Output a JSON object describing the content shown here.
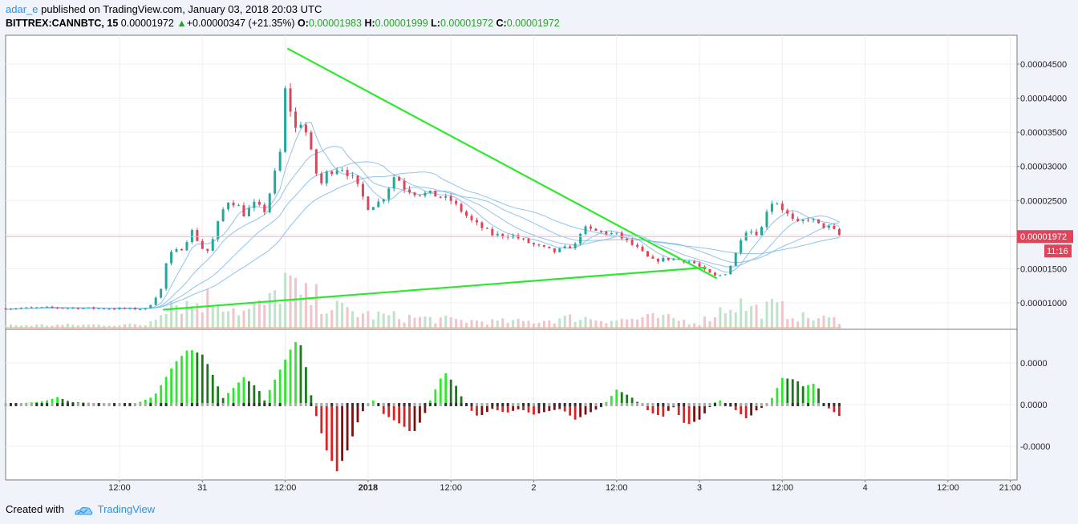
{
  "header": {
    "author": "adar_e",
    "published_text": "published on TradingView.com, January 03, 2018 20:03 UTC"
  },
  "ticker": {
    "symbol": "BITTREX:CANNBTC, 15",
    "price": "0.00001972",
    "arrow": "▲",
    "change": "+0.00000347 (+21.35%)",
    "open_label": "O:",
    "open": "0.00001983",
    "high_label": "H:",
    "high": "0.00001999",
    "low_label": "L:",
    "low": "0.00001972",
    "close_label": "C:",
    "close": "0.00001972"
  },
  "footer": {
    "created_with": "Created with",
    "brand": "TradingView"
  },
  "colors": {
    "up": "#26a69a",
    "down": "#e0445a",
    "trendline": "#2ee82e",
    "ma": "#7cb8e8",
    "hist_up": "#2ee82e",
    "hist_down": "#e02020",
    "price_label": "#e0445a",
    "background": "#f0f3fa",
    "panel": "#ffffff"
  },
  "chart_data": [
    {
      "type": "candlestick",
      "title": "",
      "ylim": [
        6.5e-06,
        4.9e-06
      ],
      "y_ticks": [
        "0.00004500",
        "0.00004000",
        "0.00003500",
        "0.00003000",
        "0.00002500",
        "0.00002000",
        "0.00001500",
        "0.00001000"
      ],
      "y_tick_values": [
        4.5e-05,
        4e-05,
        3.5e-05,
        3e-05,
        2.5e-05,
        2e-05,
        1.5e-05,
        1e-05
      ],
      "x_ticks": [
        "12:00",
        "31",
        "12:00",
        "2018",
        "12:00",
        "2",
        "12:00",
        "3",
        "12:00",
        "4",
        "12:00",
        "21:00"
      ],
      "x_tick_hours": [
        12,
        24,
        36,
        48,
        60,
        72,
        84,
        96,
        108,
        120,
        132,
        141
      ],
      "x_range_hours": [
        -4.5,
        142
      ],
      "last_price": "0.00001972",
      "last_price_value": 1.972e-05,
      "countdown": "11:16",
      "price_path": [
        [
          -4.5,
          9.2e-06
        ],
        [
          2,
          9.3e-06
        ],
        [
          8,
          9.2e-06
        ],
        [
          16,
          9.1e-06
        ],
        [
          18,
          1.2e-05
        ],
        [
          19,
          1.7e-05
        ],
        [
          21,
          1.8e-05
        ],
        [
          22.5,
          2.05e-05
        ],
        [
          24,
          1.8e-05
        ],
        [
          25,
          1.75e-05
        ],
        [
          26,
          2.1e-05
        ],
        [
          27.5,
          2.5e-05
        ],
        [
          29,
          2.45e-05
        ],
        [
          30,
          2.3e-05
        ],
        [
          31.5,
          2.45e-05
        ],
        [
          33,
          2.35e-05
        ],
        [
          34,
          2.7e-05
        ],
        [
          35.5,
          3.3e-05
        ],
        [
          36.3,
          4.6e-05
        ],
        [
          37,
          3.4e-05
        ],
        [
          38,
          3.7e-05
        ],
        [
          39,
          3.5e-05
        ],
        [
          40,
          3.1e-05
        ],
        [
          41,
          2.7e-05
        ],
        [
          42,
          2.9e-05
        ],
        [
          44,
          3e-05
        ],
        [
          46,
          2.8e-05
        ],
        [
          48,
          2.4e-05
        ],
        [
          50,
          2.5e-05
        ],
        [
          52,
          2.9e-05
        ],
        [
          53,
          2.7e-05
        ],
        [
          55,
          2.6e-05
        ],
        [
          57,
          2.6e-05
        ],
        [
          60,
          2.5e-05
        ],
        [
          63,
          2.2e-05
        ],
        [
          66,
          2e-05
        ],
        [
          69,
          1.98e-05
        ],
        [
          72,
          1.85e-05
        ],
        [
          75,
          1.75e-05
        ],
        [
          78,
          1.85e-05
        ],
        [
          79,
          2.1e-05
        ],
        [
          81,
          2.05e-05
        ],
        [
          84,
          2e-05
        ],
        [
          87,
          1.8e-05
        ],
        [
          89,
          1.62e-05
        ],
        [
          92,
          1.65e-05
        ],
        [
          95,
          1.6e-05
        ],
        [
          97,
          1.45e-05
        ],
        [
          98.5,
          1.38e-05
        ],
        [
          100,
          1.45e-05
        ],
        [
          101,
          1.65e-05
        ],
        [
          102,
          1.95e-05
        ],
        [
          103,
          2.1e-05
        ],
        [
          104,
          2e-05
        ],
        [
          105,
          2.1e-05
        ],
        [
          106,
          2.45e-05
        ],
        [
          107,
          2.5e-05
        ],
        [
          108,
          2.38e-05
        ],
        [
          110,
          2.15e-05
        ],
        [
          112,
          2.25e-05
        ],
        [
          113,
          2.15e-05
        ],
        [
          115,
          2.1e-05
        ],
        [
          116.5,
          1.97e-05
        ]
      ],
      "trendlines": [
        {
          "from": [
            36.3,
            4.73e-05
          ],
          "to": [
            98.5,
            1.36e-05
          ]
        },
        {
          "from": [
            18.3,
            9e-06
          ],
          "to": [
            97,
            1.52e-05
          ]
        }
      ],
      "volume_max_note": "volume histogram at bottom of price pane",
      "volume_path": [
        [
          -4.5,
          0.05
        ],
        [
          16,
          0.06
        ],
        [
          19,
          0.55
        ],
        [
          22,
          0.45
        ],
        [
          26,
          0.6
        ],
        [
          30,
          0.3
        ],
        [
          34,
          0.5
        ],
        [
          36,
          0.95
        ],
        [
          38,
          0.6
        ],
        [
          41,
          0.55
        ],
        [
          44,
          0.35
        ],
        [
          48,
          0.25
        ],
        [
          54,
          0.2
        ],
        [
          60,
          0.15
        ],
        [
          66,
          0.12
        ],
        [
          72,
          0.12
        ],
        [
          78,
          0.2
        ],
        [
          84,
          0.15
        ],
        [
          90,
          0.2
        ],
        [
          96,
          0.1
        ],
        [
          101,
          0.5
        ],
        [
          104,
          0.35
        ],
        [
          107,
          0.4
        ],
        [
          111,
          0.2
        ],
        [
          116.5,
          0.15
        ]
      ]
    },
    {
      "type": "histogram",
      "title": "",
      "ylim": [
        -1,
        1
      ],
      "y_ticks": [
        "0.0000",
        "0.0000",
        "-0.0000"
      ],
      "y_tick_values": [
        0.5,
        0,
        -0.5
      ],
      "osc_path": [
        [
          -4.5,
          0
        ],
        [
          1,
          0.04
        ],
        [
          3,
          0.09
        ],
        [
          5,
          0.03
        ],
        [
          14,
          0
        ],
        [
          17,
          0.1
        ],
        [
          20,
          0.5
        ],
        [
          22,
          0.67
        ],
        [
          24,
          0.6
        ],
        [
          25,
          0.45
        ],
        [
          27,
          0.08
        ],
        [
          28.5,
          0.2
        ],
        [
          30,
          0.33
        ],
        [
          32,
          0.2
        ],
        [
          33,
          0.05
        ],
        [
          34.5,
          0.3
        ],
        [
          37,
          0.7
        ],
        [
          38,
          0.8
        ],
        [
          39,
          0.45
        ],
        [
          40,
          0.0
        ],
        [
          42,
          -0.55
        ],
        [
          43.5,
          -0.8
        ],
        [
          45,
          -0.55
        ],
        [
          47,
          -0.1
        ],
        [
          49,
          0.07
        ],
        [
          50,
          -0.1
        ],
        [
          53,
          -0.25
        ],
        [
          54.5,
          -0.35
        ],
        [
          56,
          -0.15
        ],
        [
          57,
          0.05
        ],
        [
          59,
          0.4
        ],
        [
          61,
          0.2
        ],
        [
          62,
          0.0
        ],
        [
          64,
          -0.15
        ],
        [
          66,
          -0.05
        ],
        [
          68,
          -0.1
        ],
        [
          70,
          -0.05
        ],
        [
          72,
          -0.12
        ],
        [
          74,
          -0.08
        ],
        [
          76,
          -0.05
        ],
        [
          78,
          -0.18
        ],
        [
          80,
          -0.1
        ],
        [
          82,
          -0.02
        ],
        [
          84,
          0.18
        ],
        [
          86,
          0.1
        ],
        [
          87.5,
          0.0
        ],
        [
          89,
          -0.1
        ],
        [
          91,
          -0.15
        ],
        [
          92,
          0.0
        ],
        [
          94,
          -0.25
        ],
        [
          96,
          -0.18
        ],
        [
          98,
          0.02
        ],
        [
          99,
          0.05
        ],
        [
          101,
          -0.05
        ],
        [
          103,
          -0.18
        ],
        [
          104,
          -0.08
        ],
        [
          106,
          0.0
        ],
        [
          108,
          0.32
        ],
        [
          110,
          0.3
        ],
        [
          111,
          0.22
        ],
        [
          113,
          0.26
        ],
        [
          114,
          0.0
        ],
        [
          116,
          -0.12
        ],
        [
          116.5,
          -0.15
        ]
      ]
    }
  ]
}
